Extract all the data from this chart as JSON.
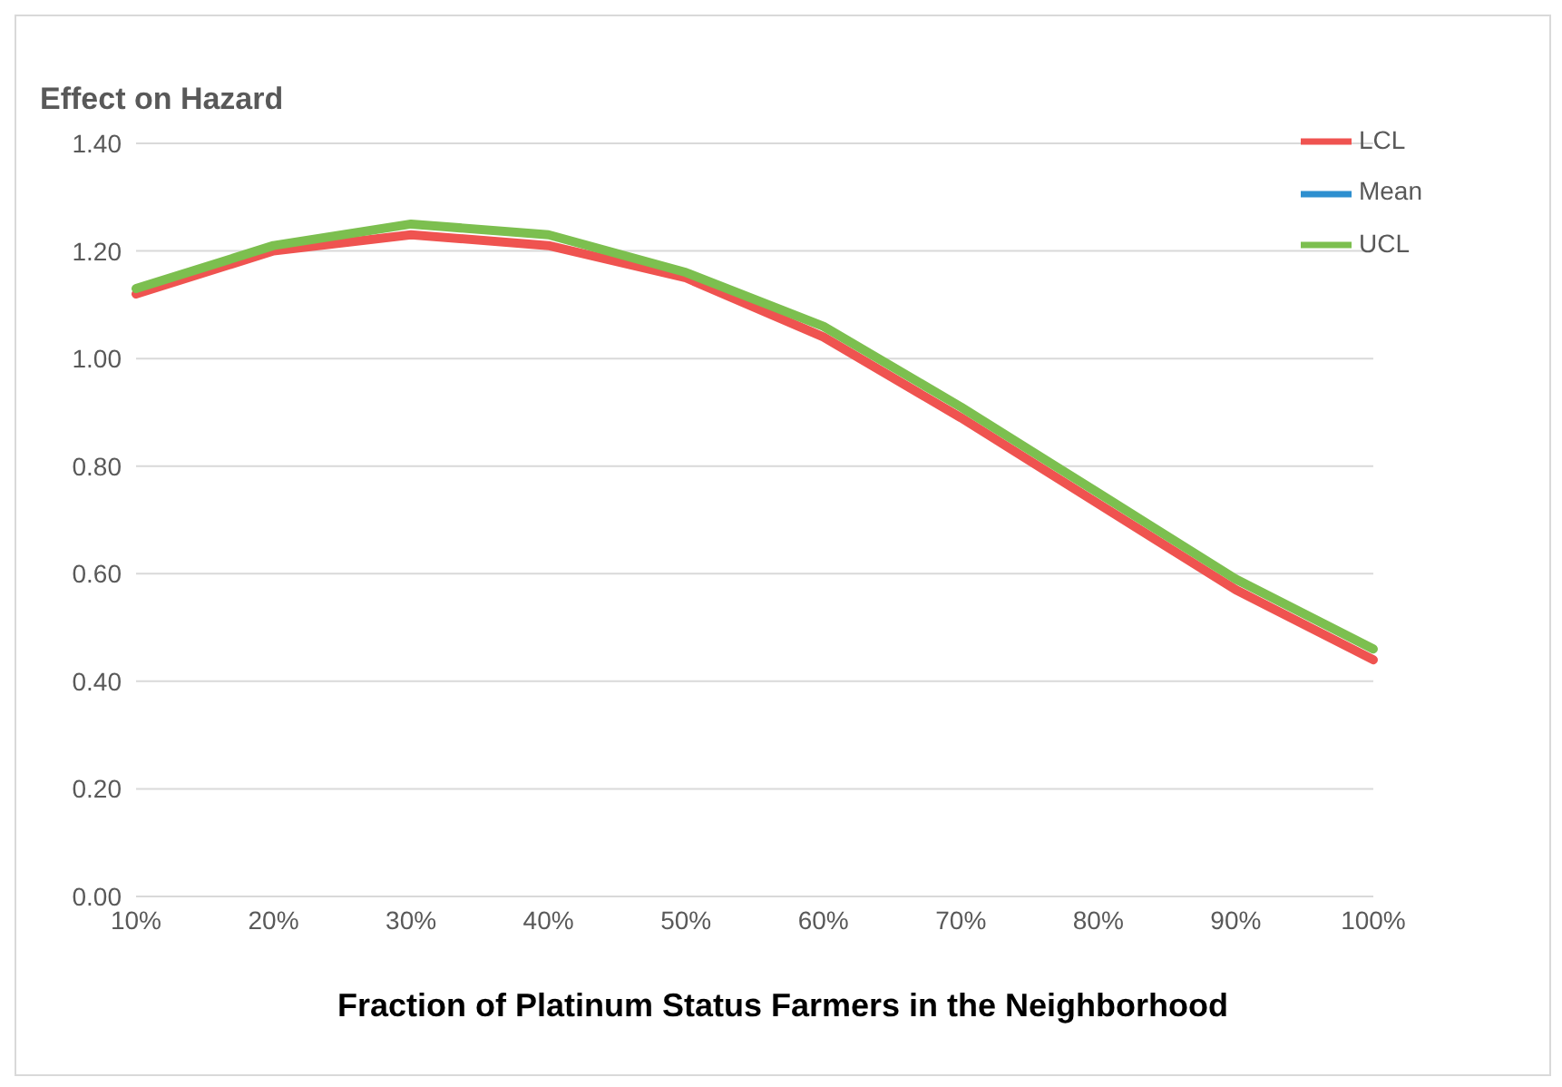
{
  "chart_data": {
    "type": "line",
    "ylabel": "Effect on Hazard",
    "xlabel": "Fraction of Platinum Status Farmers in the Neighborhood",
    "categories": [
      "10%",
      "20%",
      "30%",
      "40%",
      "50%",
      "60%",
      "70%",
      "80%",
      "90%",
      "100%"
    ],
    "series": [
      {
        "name": "Mean",
        "color": "#2e8fcf",
        "values": [
          null,
          null,
          null,
          null,
          null,
          null,
          null,
          null,
          null,
          null
        ]
      },
      {
        "name": "LCL",
        "color": "#ef5350",
        "values": [
          1.12,
          1.2,
          1.23,
          1.21,
          1.15,
          1.04,
          0.89,
          0.73,
          0.57,
          0.44
        ]
      },
      {
        "name": "UCL",
        "color": "#7cbf4f",
        "values": [
          1.13,
          1.21,
          1.25,
          1.23,
          1.16,
          1.06,
          0.91,
          0.75,
          0.59,
          0.46
        ]
      }
    ],
    "ylim": [
      0,
      1.4
    ],
    "yticks": [
      {
        "value": 0,
        "label": "0.00"
      },
      {
        "value": 0.2,
        "label": "0.20"
      },
      {
        "value": 0.4,
        "label": "0.40"
      },
      {
        "value": 0.6,
        "label": "0.60"
      },
      {
        "value": 0.8,
        "label": "0.80"
      },
      {
        "value": 1,
        "label": "1.00"
      },
      {
        "value": 1.2,
        "label": "1.20"
      },
      {
        "value": 1.4,
        "label": "1.40"
      }
    ],
    "grid": "y",
    "legend": "top right",
    "marker": "none",
    "line_style": "solid"
  }
}
